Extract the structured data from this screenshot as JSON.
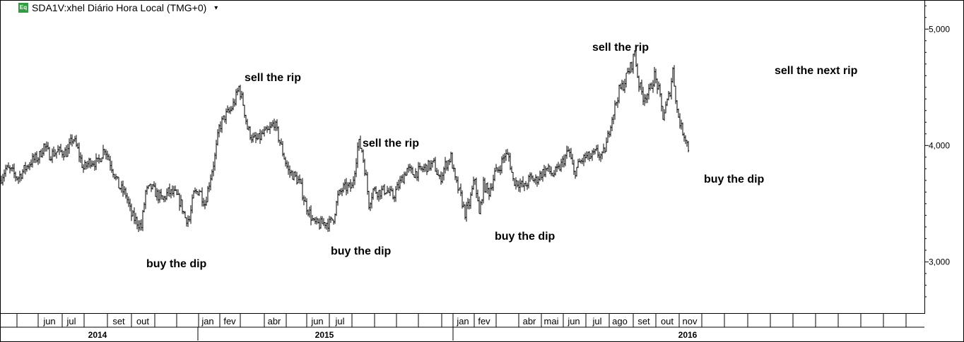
{
  "legend": {
    "icon_label": "Eq",
    "title": "SDA1V:xhel Diário Hora Local (TMG+0)",
    "caret": "▾"
  },
  "chart_data": {
    "type": "ohlc",
    "y_axis": {
      "ticks": [
        3000,
        4000,
        5000
      ],
      "tick_labels": [
        "3,000",
        "4,000",
        "5,000"
      ],
      "ylim": [
        2560,
        5250
      ],
      "side": "right"
    },
    "x_axis": {
      "month_labels": [
        "jun",
        "jul",
        "set",
        "out",
        "jan",
        "fev",
        "abr",
        "jun",
        "jul",
        "jan",
        "fev",
        "abr",
        "mai",
        "jun",
        "jul",
        "ago",
        "set",
        "out",
        "nov"
      ],
      "year_labels": [
        "2014",
        "2015",
        "2016"
      ]
    },
    "series": [
      {
        "anchors": [
          [
            0,
            3700
          ],
          [
            8,
            3800
          ],
          [
            16,
            3780
          ],
          [
            25,
            3720
          ],
          [
            35,
            3800
          ],
          [
            45,
            3870
          ],
          [
            55,
            3900
          ],
          [
            62,
            4000
          ],
          [
            70,
            3920
          ],
          [
            82,
            3950
          ],
          [
            95,
            3940
          ],
          [
            103,
            4070
          ],
          [
            110,
            3960
          ],
          [
            118,
            3800
          ],
          [
            128,
            3870
          ],
          [
            138,
            3850
          ],
          [
            148,
            3980
          ],
          [
            158,
            3820
          ],
          [
            168,
            3650
          ],
          [
            178,
            3580
          ],
          [
            186,
            3400
          ],
          [
            193,
            3350
          ],
          [
            200,
            3300
          ],
          [
            206,
            3600
          ],
          [
            214,
            3640
          ],
          [
            222,
            3580
          ],
          [
            230,
            3530
          ],
          [
            238,
            3600
          ],
          [
            248,
            3580
          ],
          [
            256,
            3500
          ],
          [
            262,
            3380
          ],
          [
            268,
            3360
          ],
          [
            274,
            3580
          ],
          [
            282,
            3620
          ],
          [
            290,
            3500
          ],
          [
            296,
            3680
          ],
          [
            304,
            3900
          ],
          [
            310,
            4150
          ],
          [
            318,
            4250
          ],
          [
            326,
            4300
          ],
          [
            332,
            4380
          ],
          [
            338,
            4500
          ],
          [
            344,
            4360
          ],
          [
            350,
            4150
          ],
          [
            358,
            4050
          ],
          [
            365,
            4050
          ],
          [
            372,
            4100
          ],
          [
            380,
            4120
          ],
          [
            388,
            4200
          ],
          [
            395,
            4050
          ],
          [
            402,
            3900
          ],
          [
            408,
            3780
          ],
          [
            416,
            3740
          ],
          [
            424,
            3680
          ],
          [
            432,
            3500
          ],
          [
            438,
            3420
          ],
          [
            444,
            3330
          ],
          [
            452,
            3320
          ],
          [
            460,
            3340
          ],
          [
            466,
            3330
          ],
          [
            472,
            3380
          ],
          [
            478,
            3560
          ],
          [
            485,
            3630
          ],
          [
            492,
            3640
          ],
          [
            498,
            3640
          ],
          [
            502,
            3800
          ],
          [
            507,
            4030
          ],
          [
            512,
            3960
          ],
          [
            518,
            3720
          ],
          [
            522,
            3500
          ],
          [
            528,
            3620
          ],
          [
            536,
            3600
          ],
          [
            546,
            3620
          ],
          [
            556,
            3560
          ],
          [
            566,
            3680
          ],
          [
            576,
            3800
          ],
          [
            584,
            3760
          ],
          [
            594,
            3780
          ],
          [
            604,
            3820
          ],
          [
            614,
            3840
          ],
          [
            622,
            3700
          ],
          [
            630,
            3830
          ],
          [
            638,
            3900
          ],
          [
            644,
            3700
          ],
          [
            652,
            3560
          ],
          [
            658,
            3420
          ],
          [
            664,
            3500
          ],
          [
            672,
            3720
          ],
          [
            678,
            3400
          ],
          [
            684,
            3660
          ],
          [
            692,
            3600
          ],
          [
            700,
            3760
          ],
          [
            706,
            3800
          ],
          [
            714,
            3920
          ],
          [
            720,
            3900
          ],
          [
            726,
            3700
          ],
          [
            734,
            3680
          ],
          [
            742,
            3640
          ],
          [
            750,
            3720
          ],
          [
            758,
            3700
          ],
          [
            766,
            3760
          ],
          [
            774,
            3800
          ],
          [
            782,
            3750
          ],
          [
            790,
            3790
          ],
          [
            798,
            3880
          ],
          [
            805,
            3960
          ],
          [
            812,
            3760
          ],
          [
            820,
            3850
          ],
          [
            828,
            3900
          ],
          [
            836,
            3900
          ],
          [
            844,
            3940
          ],
          [
            852,
            3900
          ],
          [
            858,
            4010
          ],
          [
            864,
            4200
          ],
          [
            870,
            4330
          ],
          [
            876,
            4470
          ],
          [
            882,
            4520
          ],
          [
            888,
            4620
          ],
          [
            894,
            4700
          ],
          [
            898,
            4810
          ],
          [
            903,
            4550
          ],
          [
            910,
            4420
          ],
          [
            918,
            4450
          ],
          [
            926,
            4600
          ],
          [
            932,
            4470
          ],
          [
            938,
            4250
          ],
          [
            944,
            4370
          ],
          [
            948,
            4470
          ],
          [
            952,
            4650
          ],
          [
            958,
            4300
          ],
          [
            964,
            4150
          ],
          [
            970,
            4070
          ],
          [
            975,
            3950
          ]
        ]
      }
    ],
    "annotations": [
      "sell the rip",
      "sell the rip",
      "sell the rip",
      "sell the next rip",
      "buy the dip",
      "buy the dip",
      "buy the dip",
      "buy the dip"
    ]
  }
}
